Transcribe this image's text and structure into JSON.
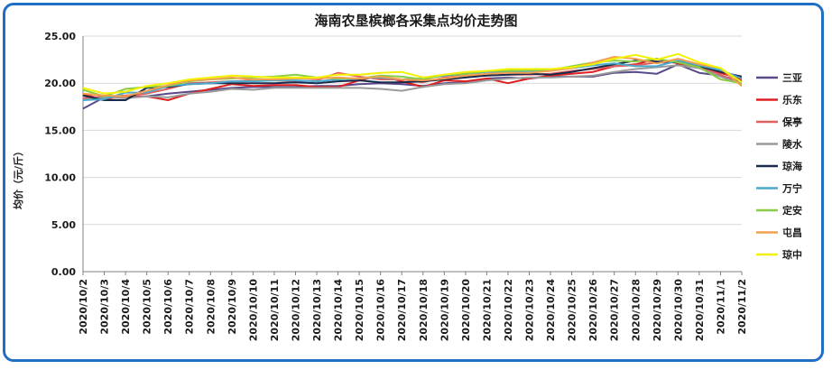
{
  "chart_data": {
    "type": "line",
    "title": "海南农垦槟榔各采集点均价走势图",
    "ylabel": "均价（元/斤）",
    "xlabel": "",
    "ylim": [
      0,
      25
    ],
    "yticks": [
      "0.00",
      "5.00",
      "10.00",
      "15.00",
      "20.00",
      "25.00"
    ],
    "grid": "horizontal",
    "legend_position": "right",
    "x": [
      "2020/10/2",
      "2020/10/3",
      "2020/10/4",
      "2020/10/5",
      "2020/10/6",
      "2020/10/7",
      "2020/10/8",
      "2020/10/9",
      "2020/10/10",
      "2020/10/11",
      "2020/10/12",
      "2020/10/13",
      "2020/10/14",
      "2020/10/15",
      "2020/10/16",
      "2020/10/17",
      "2020/10/18",
      "2020/10/19",
      "2020/10/20",
      "2020/10/21",
      "2020/10/22",
      "2020/10/23",
      "2020/10/24",
      "2020/10/25",
      "2020/10/26",
      "2020/10/27",
      "2020/10/28",
      "2020/10/29",
      "2020/10/30",
      "2020/10/31",
      "2020/11/1",
      "2020/11/2"
    ],
    "series": [
      {
        "name": "三亚",
        "color": "#5a4a8a",
        "values": [
          17.3,
          18.5,
          18.5,
          18.6,
          18.9,
          19.1,
          19.3,
          19.5,
          19.6,
          19.6,
          19.6,
          19.7,
          19.7,
          19.9,
          20.0,
          19.9,
          19.7,
          20.0,
          20.1,
          20.5,
          20.6,
          20.5,
          20.7,
          20.7,
          20.7,
          21.1,
          21.2,
          21.0,
          22.0,
          21.1,
          20.8,
          20.2
        ]
      },
      {
        "name": "乐东",
        "color": "#e02020",
        "values": [
          18.8,
          18.3,
          18.6,
          18.6,
          18.2,
          18.9,
          19.4,
          19.9,
          19.7,
          19.8,
          19.8,
          19.6,
          19.6,
          20.3,
          20.8,
          20.2,
          19.6,
          20.3,
          20.2,
          20.5,
          20.0,
          20.5,
          20.8,
          21.0,
          21.2,
          21.8,
          22.0,
          22.6,
          22.1,
          21.6,
          21.1,
          20.4
        ]
      },
      {
        "name": "保亭",
        "color": "#e06060",
        "values": [
          18.4,
          18.6,
          18.7,
          18.9,
          19.4,
          20.0,
          20.1,
          20.2,
          20.3,
          20.3,
          20.2,
          20.3,
          21.1,
          20.7,
          20.4,
          20.4,
          20.1,
          20.6,
          20.8,
          20.8,
          20.9,
          20.9,
          21.0,
          21.3,
          21.5,
          21.8,
          21.9,
          22.2,
          22.2,
          21.8,
          20.9,
          19.9
        ]
      },
      {
        "name": "陵水",
        "color": "#9a9a9a",
        "values": [
          18.2,
          18.5,
          18.4,
          18.6,
          18.5,
          18.9,
          19.1,
          19.4,
          19.3,
          19.5,
          19.5,
          19.5,
          19.5,
          19.5,
          19.4,
          19.2,
          19.6,
          19.9,
          20.0,
          20.3,
          20.5,
          20.6,
          20.6,
          20.7,
          20.8,
          21.2,
          21.5,
          21.7,
          21.9,
          21.6,
          20.7,
          19.9
        ]
      },
      {
        "name": "琼海",
        "color": "#1a2a4a",
        "values": [
          18.7,
          18.2,
          18.2,
          19.5,
          19.6,
          19.9,
          20.0,
          20.0,
          20.0,
          20.0,
          20.1,
          20.0,
          20.2,
          20.3,
          20.1,
          20.1,
          20.2,
          20.4,
          20.6,
          20.8,
          20.9,
          21.0,
          20.9,
          21.2,
          21.6,
          22.0,
          22.4,
          22.3,
          22.2,
          21.8,
          21.2,
          20.7
        ]
      },
      {
        "name": "万宁",
        "color": "#4aaacc",
        "values": [
          18.2,
          18.3,
          19.0,
          19.0,
          19.7,
          19.9,
          20.0,
          20.2,
          20.2,
          20.3,
          20.3,
          20.2,
          20.4,
          20.5,
          20.6,
          20.4,
          20.5,
          20.8,
          21.0,
          21.2,
          21.2,
          21.3,
          21.4,
          21.6,
          21.9,
          22.1,
          21.8,
          21.8,
          22.4,
          21.9,
          21.4,
          20.5
        ]
      },
      {
        "name": "定安",
        "color": "#8acc44",
        "values": [
          19.3,
          18.6,
          19.4,
          19.6,
          19.7,
          20.2,
          20.4,
          20.5,
          20.6,
          20.7,
          20.9,
          20.6,
          20.5,
          20.5,
          20.8,
          20.7,
          20.4,
          20.9,
          21.0,
          21.3,
          21.3,
          21.4,
          21.4,
          21.8,
          22.2,
          22.4,
          22.3,
          22.6,
          22.2,
          21.7,
          20.4,
          20.0
        ]
      },
      {
        "name": "屯昌",
        "color": "#f2a050",
        "values": [
          18.9,
          18.7,
          18.6,
          19.2,
          19.8,
          20.3,
          20.4,
          20.6,
          20.4,
          20.4,
          20.5,
          20.5,
          20.6,
          20.5,
          20.7,
          20.4,
          20.3,
          20.5,
          20.8,
          21.0,
          21.1,
          21.1,
          21.3,
          21.6,
          22.2,
          22.8,
          22.6,
          22.1,
          22.6,
          22.0,
          21.6,
          19.7
        ]
      },
      {
        "name": "琼中",
        "color": "#f2f200",
        "values": [
          19.5,
          18.9,
          19.1,
          19.7,
          20.0,
          20.4,
          20.6,
          20.8,
          20.7,
          20.6,
          20.6,
          20.6,
          20.9,
          20.9,
          21.1,
          21.2,
          20.6,
          20.9,
          21.2,
          21.3,
          21.5,
          21.5,
          21.5,
          21.7,
          22.0,
          22.6,
          23.0,
          22.5,
          23.1,
          22.2,
          21.6,
          20.1
        ]
      }
    ]
  }
}
